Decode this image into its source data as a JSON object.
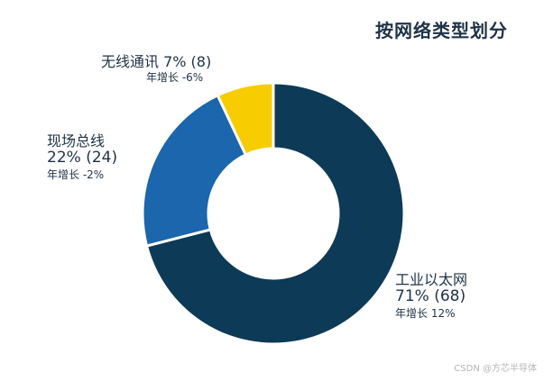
{
  "title": "按网络类型划分",
  "watermark": "CSDN @方芯半导体",
  "colors": {
    "industrial_ethernet": "#0d3a57",
    "fieldbus": "#1b66ad",
    "wireless": "#f7cc00",
    "text": "#1f3347",
    "separator": "#ffffff"
  },
  "chart_data": {
    "type": "pie",
    "variant": "donut",
    "title": "按网络类型划分",
    "categories": [
      "工业以太网",
      "现场总线",
      "无线通讯"
    ],
    "values": [
      71,
      22,
      7
    ],
    "counts": [
      68,
      24,
      8
    ],
    "growth": [
      "12%",
      "-2%",
      "-6%"
    ],
    "unit": "%",
    "legend": "none",
    "labels": [
      {
        "category": "工业以太网",
        "pct_text": "71% (68)",
        "growth_text": "年增长 12%"
      },
      {
        "category": "现场总线",
        "pct_text": "22% (24)",
        "growth_text": "年增长 -2%"
      },
      {
        "name_pct_text": "无线通讯 7% (8)",
        "growth_text": "年增长 -6%"
      }
    ]
  }
}
